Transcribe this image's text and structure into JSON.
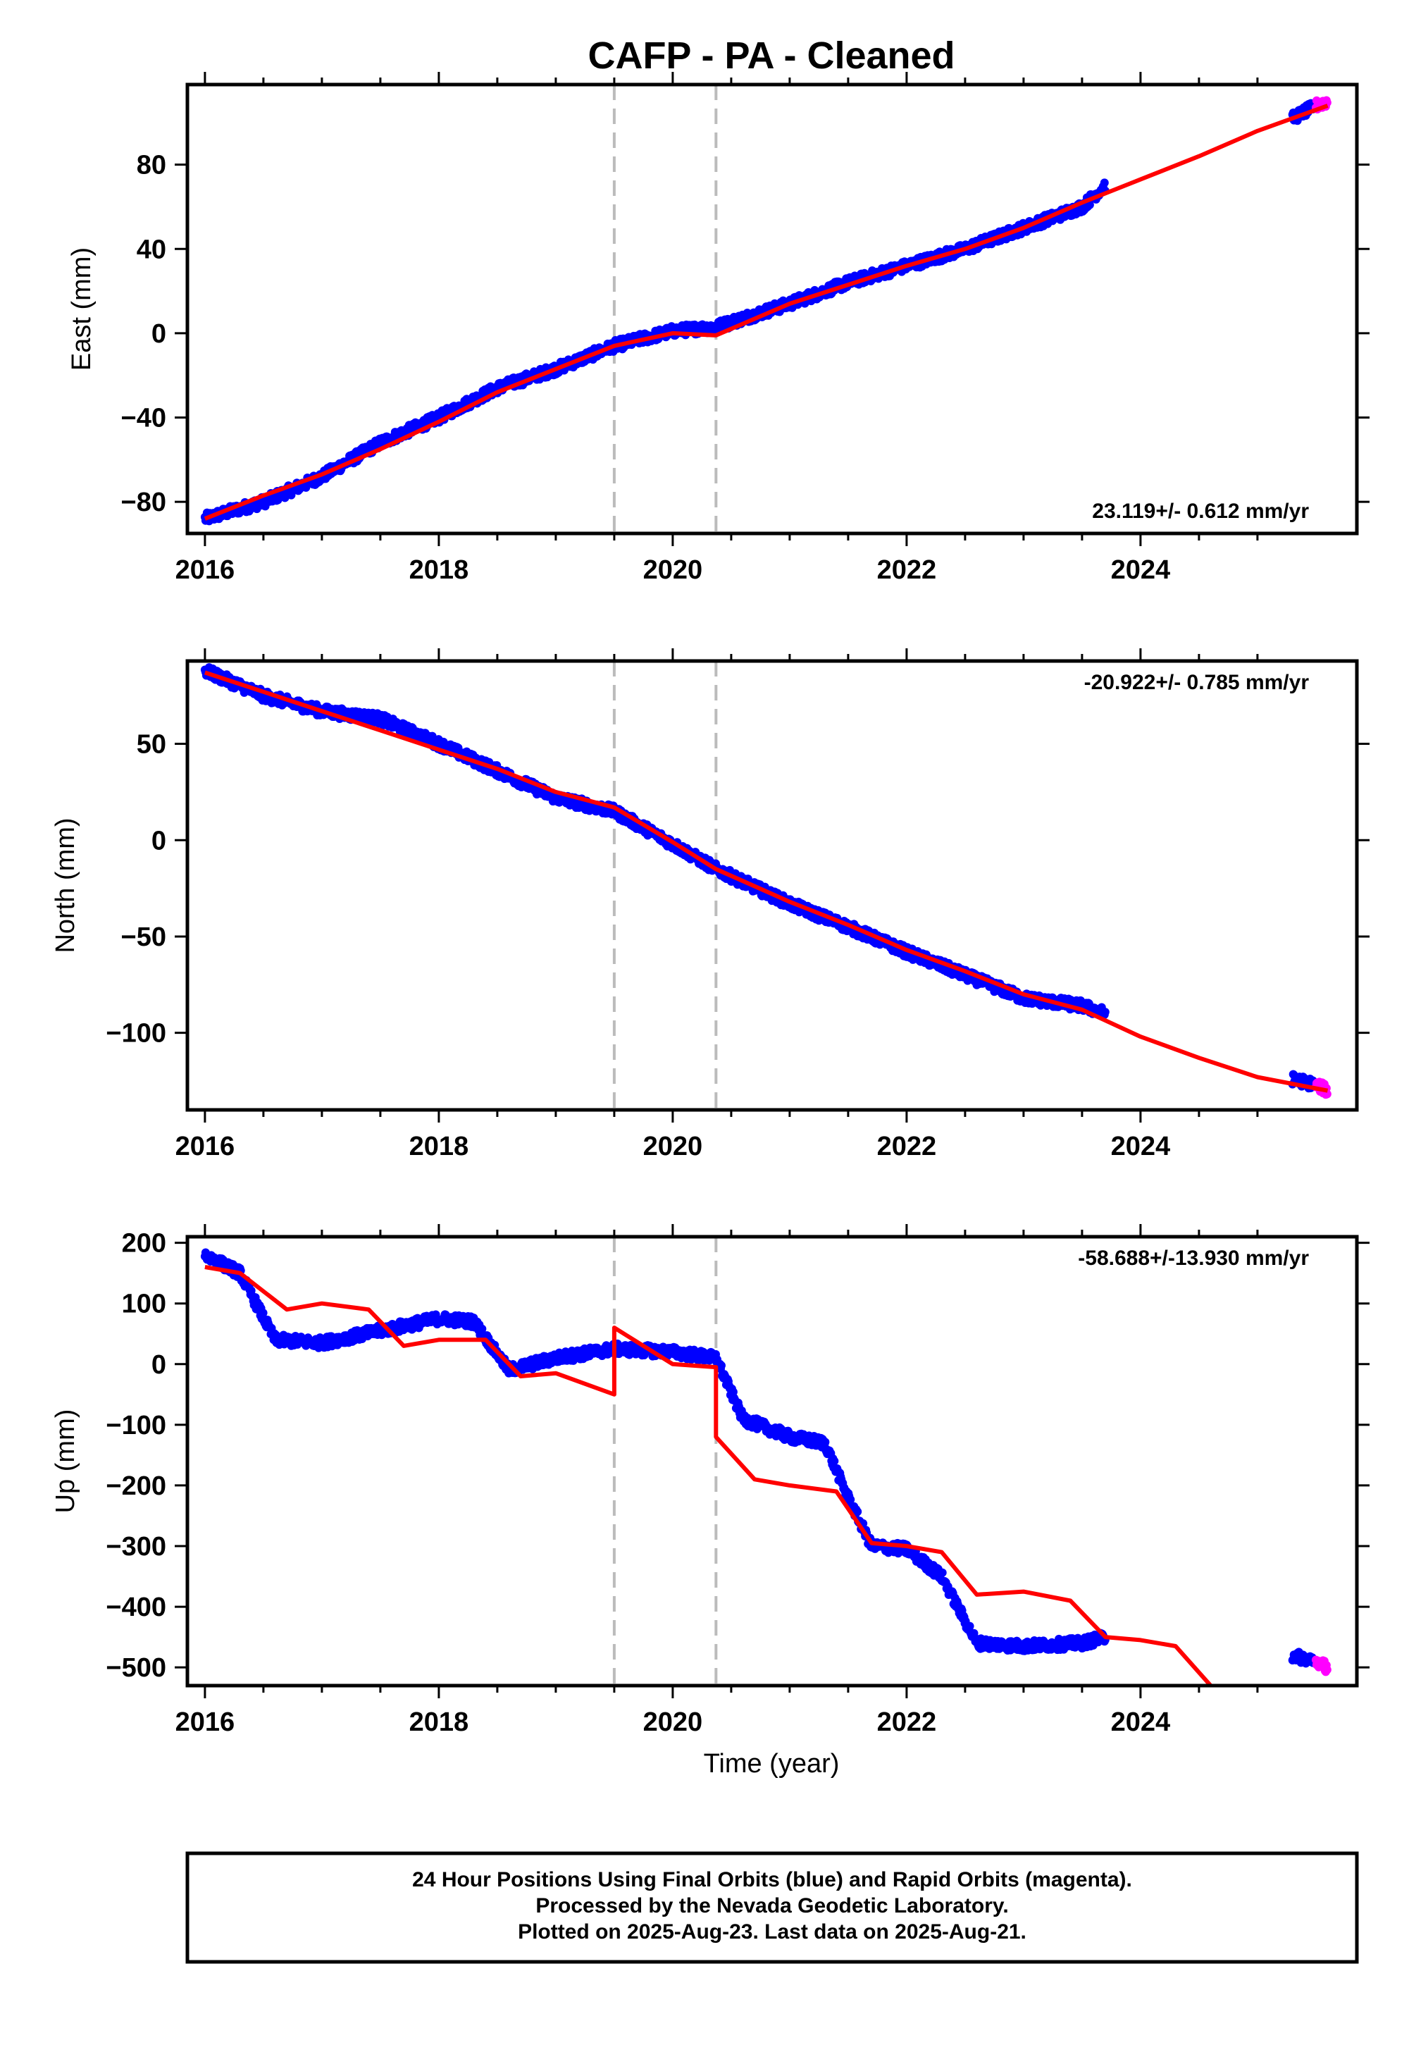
{
  "title": "CAFP  - PA - Cleaned",
  "x_axis_label": "Time (year)",
  "footer": {
    "line1": "24 Hour Positions Using Final Orbits (blue) and Rapid Orbits (magenta).",
    "line2": "Processed by the Nevada Geodetic Laboratory.",
    "line3": "Plotted on 2025-Aug-23. Last data on 2025-Aug-21."
  },
  "colors": {
    "final_orbits": "#0000ff",
    "rapid_orbits": "#ff00ff",
    "model_fit": "#ff0000",
    "event_lines": "#bbbbbb"
  },
  "chart_data": [
    {
      "type": "scatter",
      "panel": "east",
      "ylabel": "East (mm)",
      "xlim": [
        2015.85,
        2025.85
      ],
      "ylim": [
        -95,
        118
      ],
      "xticks": [
        2016,
        2018,
        2020,
        2022,
        2024
      ],
      "yticks": [
        -80,
        -40,
        0,
        40,
        80
      ],
      "rate_label": "23.119+/- 0.612 mm/yr",
      "event_lines_x": [
        2019.5,
        2020.37
      ],
      "series": [
        {
          "name": "Final Orbits",
          "color": "#0000ff",
          "x": [
            2016.0,
            2016.5,
            2017.0,
            2017.5,
            2018.0,
            2018.5,
            2019.0,
            2019.5,
            2020.0,
            2020.37,
            2021.0,
            2021.5,
            2022.0,
            2022.5,
            2023.0,
            2023.5,
            2023.7,
            2025.3
          ],
          "y": [
            -88,
            -80,
            -68,
            -52,
            -40,
            -26,
            -17,
            -6,
            1,
            3,
            14,
            24,
            32,
            40,
            50,
            60,
            70,
            102
          ]
        },
        {
          "name": "Rapid Orbits",
          "color": "#ff00ff",
          "x": [
            2025.5,
            2025.6
          ],
          "y": [
            108,
            110
          ]
        },
        {
          "name": "Model Fit",
          "color": "#ff0000",
          "x": [
            2016.0,
            2016.5,
            2017.0,
            2017.5,
            2018.0,
            2018.5,
            2019.0,
            2019.5,
            2020.0,
            2020.37,
            2021.0,
            2021.5,
            2022.0,
            2022.5,
            2023.0,
            2023.5,
            2024.0,
            2024.5,
            2025.0,
            2025.6
          ],
          "y": [
            -88,
            -77,
            -67,
            -55,
            -42,
            -28,
            -17,
            -6,
            0,
            -1,
            14,
            23,
            32,
            40,
            50,
            62,
            73,
            84,
            96,
            108
          ]
        }
      ]
    },
    {
      "type": "scatter",
      "panel": "north",
      "ylabel": "North (mm)",
      "xlim": [
        2015.85,
        2025.85
      ],
      "ylim": [
        -140,
        93
      ],
      "xticks": [
        2016,
        2018,
        2020,
        2022,
        2024
      ],
      "yticks": [
        -100,
        -50,
        0,
        50
      ],
      "rate_label": "-20.922+/- 0.785 mm/yr",
      "event_lines_x": [
        2019.5,
        2020.37
      ],
      "series": [
        {
          "name": "Final Orbits",
          "color": "#0000ff",
          "x": [
            2016.0,
            2016.5,
            2017.0,
            2017.5,
            2018.0,
            2018.5,
            2019.0,
            2019.5,
            2020.0,
            2020.37,
            2021.0,
            2021.5,
            2022.0,
            2022.5,
            2023.0,
            2023.5,
            2023.7,
            2025.3
          ],
          "y": [
            88,
            75,
            67,
            63,
            50,
            36,
            22,
            15,
            -2,
            -15,
            -33,
            -45,
            -58,
            -70,
            -82,
            -86,
            -90,
            -124
          ]
        },
        {
          "name": "Rapid Orbits",
          "color": "#ff00ff",
          "x": [
            2025.5,
            2025.6
          ],
          "y": [
            -127,
            -130
          ]
        },
        {
          "name": "Model Fit",
          "color": "#ff0000",
          "x": [
            2016.0,
            2016.5,
            2017.0,
            2017.5,
            2018.0,
            2018.5,
            2019.0,
            2019.5,
            2020.0,
            2020.37,
            2021.0,
            2021.5,
            2022.0,
            2022.5,
            2023.0,
            2023.5,
            2024.0,
            2024.5,
            2025.0,
            2025.6
          ],
          "y": [
            87,
            77,
            67,
            57,
            47,
            37,
            25,
            17,
            -1,
            -15,
            -32,
            -44,
            -57,
            -68,
            -80,
            -88,
            -102,
            -113,
            -123,
            -130
          ]
        }
      ]
    },
    {
      "type": "scatter",
      "panel": "up",
      "ylabel": "Up (mm)",
      "xlim": [
        2015.85,
        2025.85
      ],
      "ylim": [
        -530,
        210
      ],
      "xticks": [
        2016,
        2018,
        2020,
        2022,
        2024
      ],
      "yticks": [
        -500,
        -400,
        -300,
        -200,
        -100,
        0,
        100,
        200
      ],
      "rate_label": "-58.688+/-13.930 mm/yr",
      "event_lines_x": [
        2019.5,
        2020.37
      ],
      "series": [
        {
          "name": "Final Orbits",
          "color": "#0000ff",
          "x": [
            2016.0,
            2016.3,
            2016.6,
            2017.0,
            2017.5,
            2018.0,
            2018.3,
            2018.6,
            2019.0,
            2019.5,
            2020.0,
            2020.37,
            2020.6,
            2021.0,
            2021.3,
            2021.5,
            2021.7,
            2022.0,
            2022.3,
            2022.6,
            2023.0,
            2023.5,
            2023.7,
            2025.3
          ],
          "y": [
            180,
            150,
            40,
            35,
            55,
            75,
            70,
            -10,
            10,
            25,
            20,
            10,
            -90,
            -120,
            -130,
            -220,
            -300,
            -305,
            -350,
            -460,
            -465,
            -460,
            -450,
            -480
          ]
        },
        {
          "name": "Rapid Orbits",
          "color": "#ff00ff",
          "x": [
            2025.5,
            2025.6
          ],
          "y": [
            -490,
            -500
          ]
        },
        {
          "name": "Model Fit",
          "color": "#ff0000",
          "x": [
            2016.0,
            2016.3,
            2016.7,
            2017.0,
            2017.4,
            2017.7,
            2018.0,
            2018.4,
            2018.7,
            2019.0,
            2019.5,
            2019.5,
            2020.0,
            2020.37,
            2020.37,
            2020.7,
            2021.0,
            2021.4,
            2021.7,
            2022.0,
            2022.3,
            2022.6,
            2023.0,
            2023.4,
            2023.7,
            2024.0,
            2024.3,
            2024.6
          ],
          "y": [
            160,
            150,
            90,
            100,
            90,
            30,
            40,
            40,
            -20,
            -15,
            -50,
            60,
            0,
            -5,
            -120,
            -190,
            -200,
            -210,
            -295,
            -300,
            -310,
            -380,
            -375,
            -390,
            -450,
            -455,
            -465,
            -530
          ]
        }
      ]
    }
  ]
}
